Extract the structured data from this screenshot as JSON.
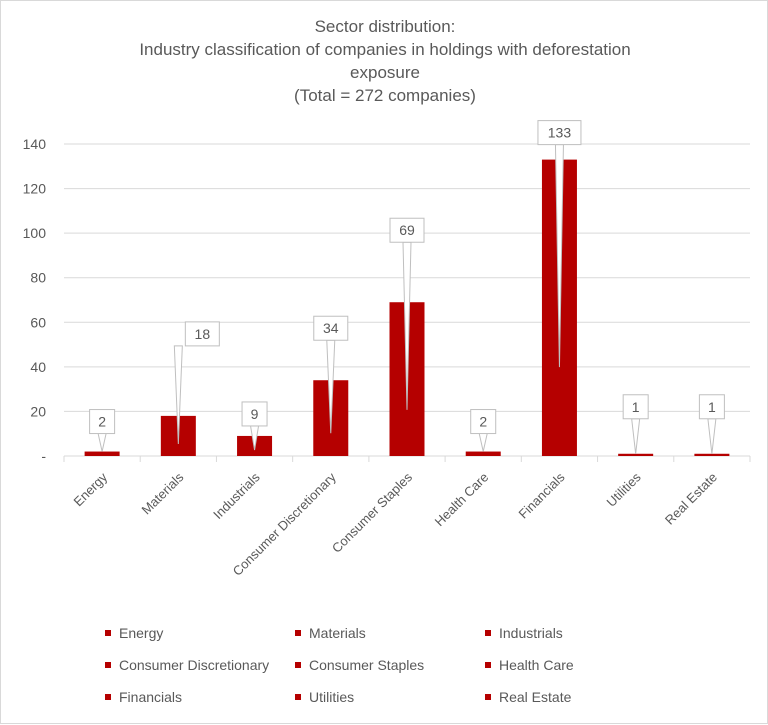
{
  "chart_data": {
    "type": "bar",
    "title": [
      "Sector distribution:",
      "Industry classification of companies in holdings with deforestation",
      "exposure",
      "(Total = 272 companies)"
    ],
    "categories": [
      "Energy",
      "Materials",
      "Industrials",
      "Consumer Discretionary",
      "Consumer Staples",
      "Health Care",
      "Financials",
      "Utilities",
      "Real Estate"
    ],
    "values": [
      2,
      18,
      9,
      34,
      69,
      2,
      133,
      1,
      1
    ],
    "data_labels": [
      "2",
      "18",
      "9",
      "34",
      "69",
      "2",
      "133",
      "1",
      "1"
    ],
    "ylim": [
      0,
      140
    ],
    "yticks": [
      0,
      20,
      40,
      60,
      80,
      100,
      120,
      140
    ],
    "ytick_labels": [
      "-",
      "20",
      "40",
      "60",
      "80",
      "100",
      "120",
      "140"
    ],
    "grid": true,
    "bar_color": "#b50000",
    "legend": {
      "placement": "bottom",
      "entries": [
        "Energy",
        "Materials",
        "Industrials",
        "Consumer Discretionary",
        "Consumer Staples",
        "Health Care",
        "Financials",
        "Utilities",
        "Real Estate"
      ]
    }
  }
}
